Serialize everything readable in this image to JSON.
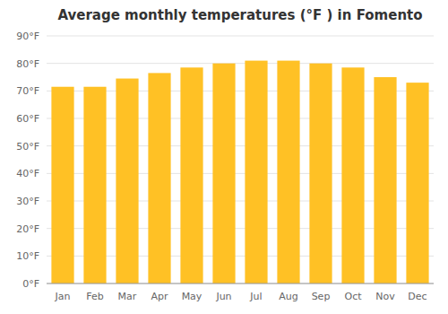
{
  "chart_data": {
    "type": "bar",
    "title": "Average monthly temperatures (°F ) in Fomento",
    "categories": [
      "Jan",
      "Feb",
      "Mar",
      "Apr",
      "May",
      "Jun",
      "Jul",
      "Aug",
      "Sep",
      "Oct",
      "Nov",
      "Dec"
    ],
    "values": [
      71.5,
      71.5,
      74.5,
      76.5,
      78.5,
      80.0,
      81.0,
      81.0,
      80.0,
      78.5,
      75.0,
      73.0
    ],
    "color": "#FFC125",
    "ylim": [
      0,
      90
    ],
    "yticks": [
      {
        "value": 0,
        "label": "0°F"
      },
      {
        "value": 10,
        "label": "10°F"
      },
      {
        "value": 20,
        "label": "20°F"
      },
      {
        "value": 30,
        "label": "30°F"
      },
      {
        "value": 40,
        "label": "40°F"
      },
      {
        "value": 50,
        "label": "50°F"
      },
      {
        "value": 60,
        "label": "60°F"
      },
      {
        "value": 70,
        "label": "70°F"
      },
      {
        "value": 80,
        "label": "80°F"
      },
      {
        "value": 90,
        "label": "90°F"
      }
    ],
    "grid": true
  }
}
